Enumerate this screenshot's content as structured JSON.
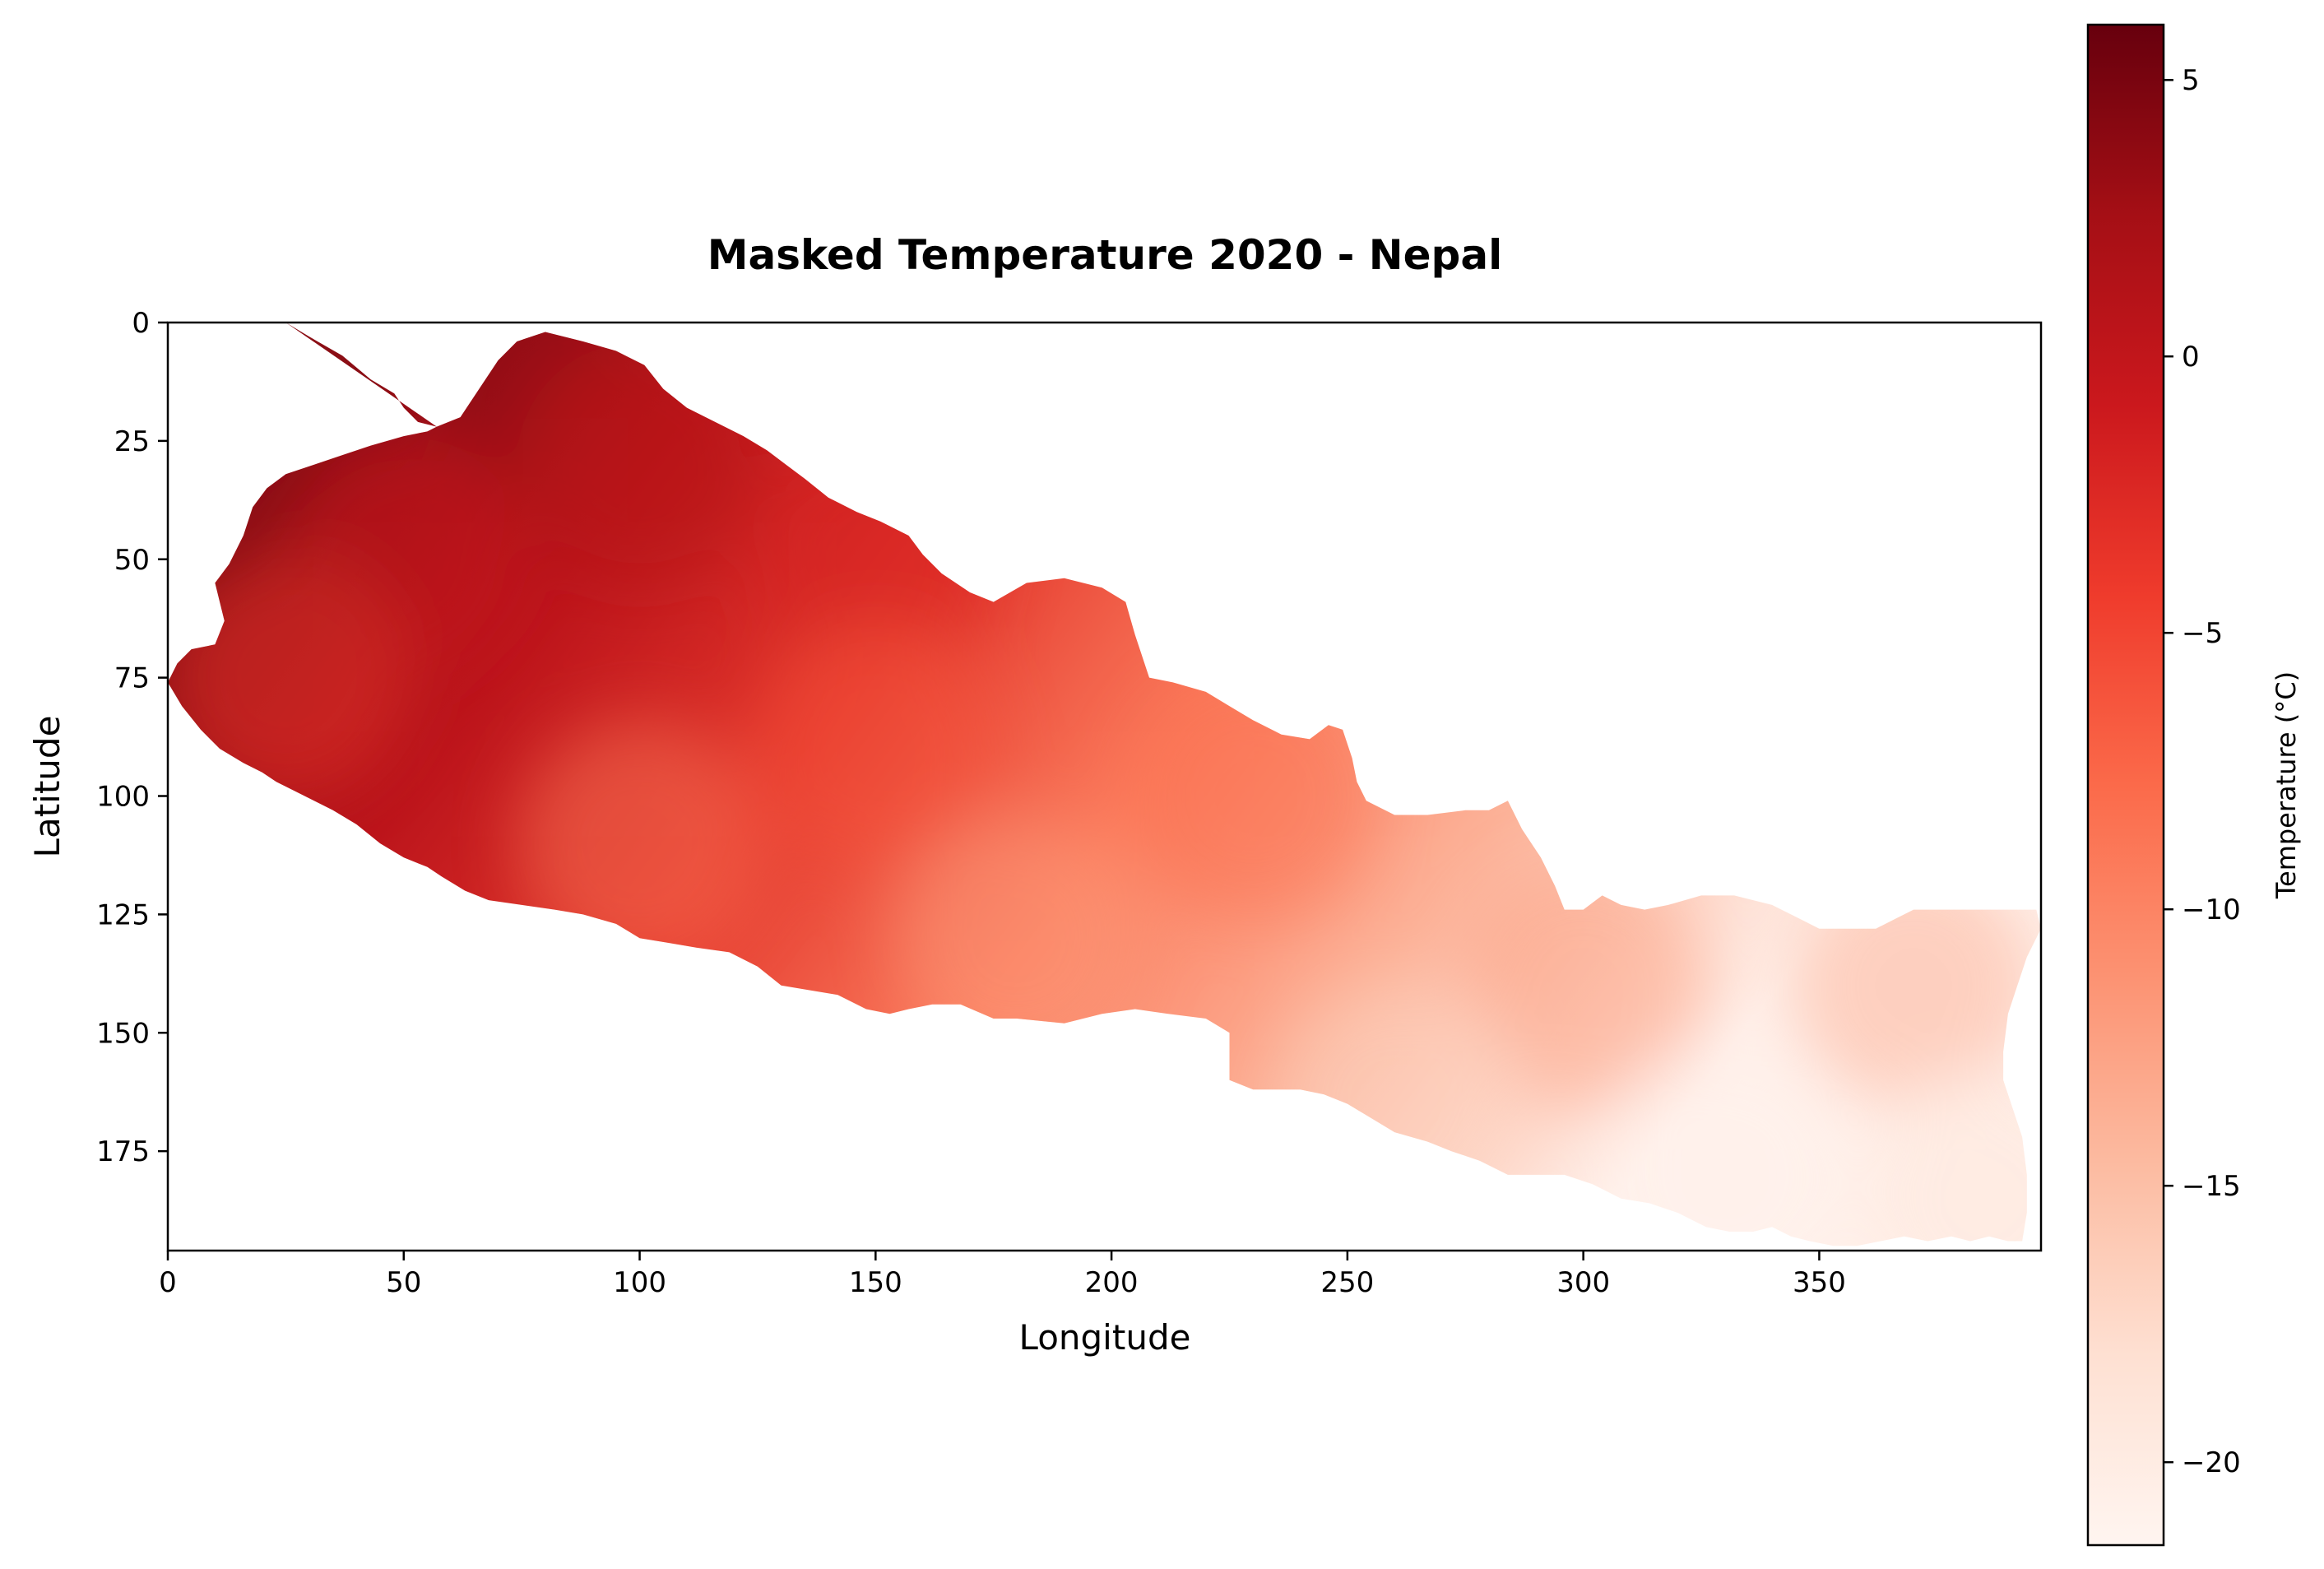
{
  "chart_data": {
    "type": "heatmap",
    "title": "Masked Temperature 2020 - Nepal",
    "xlabel": "Longitude",
    "ylabel": "Latitude",
    "xlim": [
      0,
      397
    ],
    "ylim": [
      196,
      0
    ],
    "x_ticks": [
      0,
      50,
      100,
      150,
      200,
      250,
      300,
      350
    ],
    "y_ticks": [
      0,
      25,
      50,
      75,
      100,
      125,
      150,
      175
    ],
    "x_tick_labels": [
      "0",
      "50",
      "100",
      "150",
      "200",
      "250",
      "300",
      "350"
    ],
    "y_tick_labels": [
      "0",
      "25",
      "50",
      "75",
      "100",
      "125",
      "150",
      "175"
    ],
    "colormap": "Reds",
    "colorbar": {
      "label": "Temperature (°C)",
      "range": [
        -21.5,
        6
      ],
      "ticks": [
        5,
        0,
        -5,
        -10,
        -15,
        -20
      ],
      "tick_labels": [
        "5",
        "0",
        "−5",
        "−10",
        "−15",
        "−20"
      ]
    },
    "region_outline_top": [
      [
        25,
        0
      ],
      [
        30,
        3
      ],
      [
        37,
        7
      ],
      [
        43,
        12
      ],
      [
        48,
        15
      ],
      [
        50,
        18
      ],
      [
        53,
        21
      ],
      [
        57,
        22
      ],
      [
        62,
        20
      ],
      [
        66,
        14
      ],
      [
        70,
        8
      ],
      [
        74,
        4
      ],
      [
        80,
        2
      ],
      [
        88,
        4
      ],
      [
        95,
        6
      ],
      [
        101,
        9
      ],
      [
        105,
        14
      ],
      [
        110,
        18
      ],
      [
        116,
        21
      ],
      [
        122,
        24
      ],
      [
        127,
        27
      ],
      [
        131,
        30
      ],
      [
        135,
        33
      ],
      [
        140,
        37
      ],
      [
        146,
        40
      ],
      [
        151,
        42
      ],
      [
        157,
        45
      ],
      [
        160,
        49
      ],
      [
        164,
        53
      ],
      [
        170,
        57
      ],
      [
        175,
        59
      ],
      [
        182,
        55
      ],
      [
        190,
        54
      ],
      [
        198,
        56
      ],
      [
        203,
        59
      ],
      [
        205,
        66
      ],
      [
        208,
        75
      ],
      [
        213,
        76
      ],
      [
        220,
        78
      ],
      [
        225,
        81
      ],
      [
        230,
        84
      ],
      [
        236,
        87
      ],
      [
        242,
        88
      ],
      [
        246,
        85
      ],
      [
        249,
        86
      ],
      [
        251,
        92
      ],
      [
        252,
        97
      ],
      [
        254,
        101
      ],
      [
        260,
        104
      ],
      [
        267,
        104
      ],
      [
        275,
        103
      ],
      [
        280,
        103
      ],
      [
        284,
        101
      ],
      [
        287,
        107
      ],
      [
        291,
        113
      ],
      [
        294,
        119
      ],
      [
        296,
        124
      ],
      [
        300,
        124
      ],
      [
        304,
        121
      ],
      [
        308,
        123
      ],
      [
        313,
        124
      ],
      [
        318,
        123
      ],
      [
        325,
        121
      ],
      [
        332,
        121
      ],
      [
        340,
        123
      ],
      [
        346,
        126
      ],
      [
        350,
        128
      ],
      [
        356,
        128
      ],
      [
        362,
        128
      ],
      [
        366,
        126
      ],
      [
        370,
        124
      ],
      [
        376,
        124
      ],
      [
        382,
        124
      ],
      [
        390,
        124
      ],
      [
        396,
        124
      ],
      [
        397,
        128
      ]
    ],
    "region_outline_bottom": [
      [
        397,
        128
      ],
      [
        394,
        134
      ],
      [
        392,
        140
      ],
      [
        390,
        146
      ],
      [
        389,
        154
      ],
      [
        389,
        160
      ],
      [
        391,
        166
      ],
      [
        393,
        172
      ],
      [
        394,
        180
      ],
      [
        394,
        188
      ],
      [
        393,
        194
      ],
      [
        390,
        194
      ],
      [
        386,
        193
      ],
      [
        382,
        194
      ],
      [
        378,
        193
      ],
      [
        373,
        194
      ],
      [
        368,
        193
      ],
      [
        363,
        194
      ],
      [
        358,
        195
      ],
      [
        353,
        195
      ],
      [
        348,
        194
      ],
      [
        344,
        193
      ],
      [
        340,
        191
      ],
      [
        336,
        192
      ],
      [
        331,
        192
      ],
      [
        326,
        191
      ],
      [
        320,
        188
      ],
      [
        314,
        186
      ],
      [
        308,
        185
      ],
      [
        302,
        182
      ],
      [
        296,
        180
      ],
      [
        290,
        180
      ],
      [
        284,
        180
      ],
      [
        278,
        177
      ],
      [
        272,
        175
      ],
      [
        267,
        173
      ],
      [
        260,
        171
      ],
      [
        255,
        168
      ],
      [
        250,
        165
      ],
      [
        245,
        163
      ],
      [
        240,
        162
      ],
      [
        235,
        162
      ],
      [
        230,
        162
      ],
      [
        225,
        160
      ],
      [
        225,
        150
      ],
      [
        220,
        147
      ],
      [
        212,
        146
      ],
      [
        205,
        145
      ],
      [
        198,
        146
      ],
      [
        190,
        148
      ],
      [
        180,
        147
      ],
      [
        175,
        147
      ],
      [
        168,
        144
      ],
      [
        162,
        144
      ],
      [
        157,
        145
      ],
      [
        153,
        146
      ],
      [
        148,
        145
      ],
      [
        142,
        142
      ],
      [
        136,
        141
      ],
      [
        130,
        140
      ],
      [
        125,
        136
      ],
      [
        119,
        133
      ],
      [
        112,
        132
      ],
      [
        106,
        131
      ],
      [
        100,
        130
      ],
      [
        95,
        127
      ],
      [
        88,
        125
      ],
      [
        82,
        124
      ],
      [
        75,
        123
      ],
      [
        68,
        122
      ],
      [
        63,
        120
      ],
      [
        58,
        117
      ],
      [
        55,
        115
      ],
      [
        50,
        113
      ],
      [
        45,
        110
      ],
      [
        40,
        106
      ],
      [
        35,
        103
      ],
      [
        31,
        101
      ],
      [
        27,
        99
      ],
      [
        23,
        97
      ],
      [
        20,
        95
      ],
      [
        16,
        93
      ],
      [
        11,
        90
      ],
      [
        7,
        86
      ],
      [
        3,
        81
      ],
      [
        0,
        76
      ]
    ],
    "region_outline_left": [
      [
        0,
        76
      ],
      [
        2,
        72
      ],
      [
        5,
        69
      ],
      [
        10,
        68
      ],
      [
        12,
        63
      ],
      [
        10,
        55
      ],
      [
        13,
        51
      ],
      [
        16,
        45
      ],
      [
        18,
        39
      ],
      [
        21,
        35
      ],
      [
        25,
        32
      ],
      [
        31,
        30
      ],
      [
        37,
        28
      ],
      [
        43,
        26
      ],
      [
        50,
        24
      ],
      [
        55,
        23
      ],
      [
        57,
        22
      ]
    ],
    "temperature_samples": [
      {
        "x": 80,
        "y": 15,
        "value": 4
      },
      {
        "x": 100,
        "y": 30,
        "value": 1
      },
      {
        "x": 50,
        "y": 50,
        "value": -1
      },
      {
        "x": 150,
        "y": 50,
        "value": -2
      },
      {
        "x": 25,
        "y": 75,
        "value": -4
      },
      {
        "x": 150,
        "y": 90,
        "value": -6
      },
      {
        "x": 230,
        "y": 100,
        "value": -8
      },
      {
        "x": 100,
        "y": 110,
        "value": -9
      },
      {
        "x": 180,
        "y": 130,
        "value": -12
      },
      {
        "x": 300,
        "y": 140,
        "value": -12
      },
      {
        "x": 370,
        "y": 140,
        "value": -13
      },
      {
        "x": 260,
        "y": 165,
        "value": -17
      },
      {
        "x": 330,
        "y": 180,
        "value": -21
      },
      {
        "x": 385,
        "y": 185,
        "value": -19
      }
    ]
  }
}
